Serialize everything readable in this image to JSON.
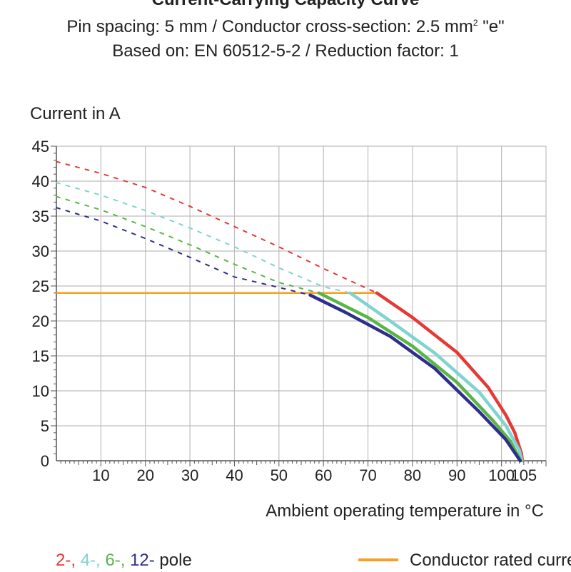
{
  "title": "Current-Carrying Capacity Curve",
  "subtitle_pre": "Pin spacing: 5 mm / Conductor cross-section: 2.5 mm",
  "subtitle_sup": "2",
  "subtitle_post": " \"e\"",
  "subtitle2": "Based on: EN 60512-5-2 / Reduction factor: 1",
  "legend": {
    "poles": [
      {
        "label": "2-",
        "color": "#e53935"
      },
      {
        "label": "4-",
        "color": "#7fd3d1"
      },
      {
        "label": "6-",
        "color": "#59b548"
      },
      {
        "label": "12-",
        "color": "#2e2e8c"
      }
    ],
    "poles_suffix": "pole",
    "rated_label": "Conductor rated current",
    "rated_color": "#f5a024"
  },
  "chart_data": {
    "type": "line",
    "title": "Current-Carrying Capacity Curve",
    "xlabel": "Ambient operating temperature in °C",
    "ylabel": "Current in A",
    "xlim": [
      0,
      110
    ],
    "ylim": [
      0,
      45
    ],
    "grid": true,
    "x_ticks": [
      10,
      20,
      30,
      40,
      50,
      60,
      70,
      80,
      90,
      100,
      105
    ],
    "x_tick_labels": [
      "10",
      "20",
      "30",
      "40",
      "50",
      "60",
      "70",
      "80",
      "90",
      "100",
      "105"
    ],
    "y_ticks": [
      0,
      5,
      10,
      15,
      20,
      25,
      30,
      35,
      40,
      45
    ],
    "y_tick_labels": [
      "0",
      "5",
      "10",
      "15",
      "20",
      "25",
      "30",
      "35",
      "40",
      "45"
    ],
    "rated_current": 24,
    "series": [
      {
        "name": "2-pole",
        "color": "#e53935",
        "dashed": [
          [
            0,
            42.8
          ],
          [
            10,
            41.1
          ],
          [
            20,
            39.1
          ],
          [
            30,
            36.4
          ],
          [
            40,
            33.5
          ],
          [
            50,
            30.6
          ],
          [
            60,
            27.5
          ],
          [
            72,
            24
          ]
        ],
        "solid": [
          [
            72,
            24
          ],
          [
            80,
            20.5
          ],
          [
            90,
            15.5
          ],
          [
            97,
            10.5
          ],
          [
            101,
            6.5
          ],
          [
            103,
            4
          ],
          [
            104.5,
            1
          ],
          [
            104.7,
            0
          ]
        ]
      },
      {
        "name": "4-pole",
        "color": "#7fd3d1",
        "dashed": [
          [
            0,
            39.8
          ],
          [
            10,
            38.0
          ],
          [
            20,
            35.8
          ],
          [
            30,
            33.3
          ],
          [
            40,
            30.6
          ],
          [
            50,
            27.6
          ],
          [
            60,
            24.9
          ],
          [
            66,
            24
          ]
        ],
        "solid": [
          [
            66,
            24
          ],
          [
            75,
            20.0
          ],
          [
            85,
            15.4
          ],
          [
            95,
            9.8
          ],
          [
            101,
            5.0
          ],
          [
            104,
            1.5
          ],
          [
            104.6,
            0
          ]
        ]
      },
      {
        "name": "6-pole",
        "color": "#59b548",
        "dashed": [
          [
            0,
            37.8
          ],
          [
            10,
            35.9
          ],
          [
            20,
            33.5
          ],
          [
            30,
            30.9
          ],
          [
            40,
            28.1
          ],
          [
            50,
            25.5
          ],
          [
            59,
            24
          ]
        ],
        "solid": [
          [
            59,
            24
          ],
          [
            70,
            20.5
          ],
          [
            80,
            16.4
          ],
          [
            90,
            11.2
          ],
          [
            98,
            5.8
          ],
          [
            102,
            2.8
          ],
          [
            104.3,
            0
          ]
        ]
      },
      {
        "name": "12-pole",
        "color": "#2e2e8c",
        "dashed": [
          [
            0,
            36.2
          ],
          [
            10,
            34.3
          ],
          [
            20,
            31.8
          ],
          [
            30,
            29.1
          ],
          [
            40,
            26.3
          ],
          [
            50,
            24.8
          ],
          [
            57,
            23.7
          ]
        ],
        "solid": [
          [
            57,
            23.7
          ],
          [
            65,
            21.2
          ],
          [
            75,
            17.8
          ],
          [
            85,
            13.2
          ],
          [
            95,
            7.0
          ],
          [
            101,
            3.0
          ],
          [
            104.2,
            0
          ]
        ]
      }
    ]
  }
}
